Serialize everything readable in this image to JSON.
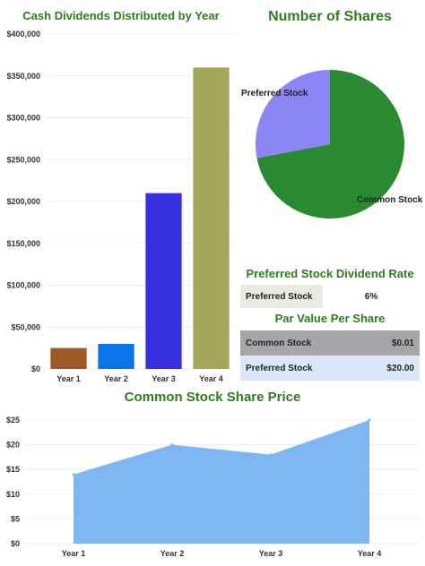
{
  "bar_title": "Cash Dividends Distributed by Year",
  "pie_title": "Number of Shares",
  "area_title": "Common Stock Share Price",
  "pref_rate": {
    "title": "Preferred Stock Dividend Rate",
    "label": "Preferred Stock",
    "value": "6%"
  },
  "par_value": {
    "title": "Par Value Per Share",
    "rows": [
      {
        "label": "Common Stock",
        "value": "$0.01"
      },
      {
        "label": "Preferred Stock",
        "value": "$20.00"
      }
    ]
  },
  "colors": {
    "title_green": "#2e7d1e",
    "pie_common": "#2a8a32",
    "pie_preferred": "#8c85f5",
    "area_fill": "#7fb6f2",
    "row_gray": "#a6a6a6",
    "row_blue": "#dce8f9",
    "label_bg": "#e8ebe0"
  },
  "chart_data": [
    {
      "type": "bar",
      "title": "Cash Dividends Distributed by Year",
      "categories": [
        "Year 1",
        "Year 2",
        "Year 3",
        "Year 4"
      ],
      "values": [
        25000,
        30000,
        210000,
        360000
      ],
      "bar_colors": [
        "#9b5a27",
        "#0b74e8",
        "#3630de",
        "#a4a65a"
      ],
      "ylim": [
        0,
        400000
      ],
      "yticks": [
        0,
        50000,
        100000,
        150000,
        200000,
        250000,
        300000,
        350000,
        400000
      ],
      "ytick_labels": [
        "$0",
        "$50,000",
        "$100,000",
        "$150,000",
        "$200,000",
        "$250,000",
        "$300,000",
        "$350,000",
        "$400,000"
      ],
      "grid": true
    },
    {
      "type": "pie",
      "title": "Number of Shares",
      "slices": [
        {
          "label": "Common Stock",
          "value": 72
        },
        {
          "label": "Preferred Stock",
          "value": 28
        }
      ]
    },
    {
      "type": "area",
      "title": "Common Stock Share Price",
      "categories": [
        "Year 1",
        "Year 2",
        "Year 3",
        "Year 4"
      ],
      "values": [
        14,
        20,
        18,
        25
      ],
      "ylim": [
        0,
        25
      ],
      "yticks": [
        0,
        5,
        10,
        15,
        20,
        25
      ],
      "ytick_labels": [
        "$0",
        "$5",
        "$10",
        "$15",
        "$20",
        "$25"
      ],
      "grid": true
    }
  ]
}
